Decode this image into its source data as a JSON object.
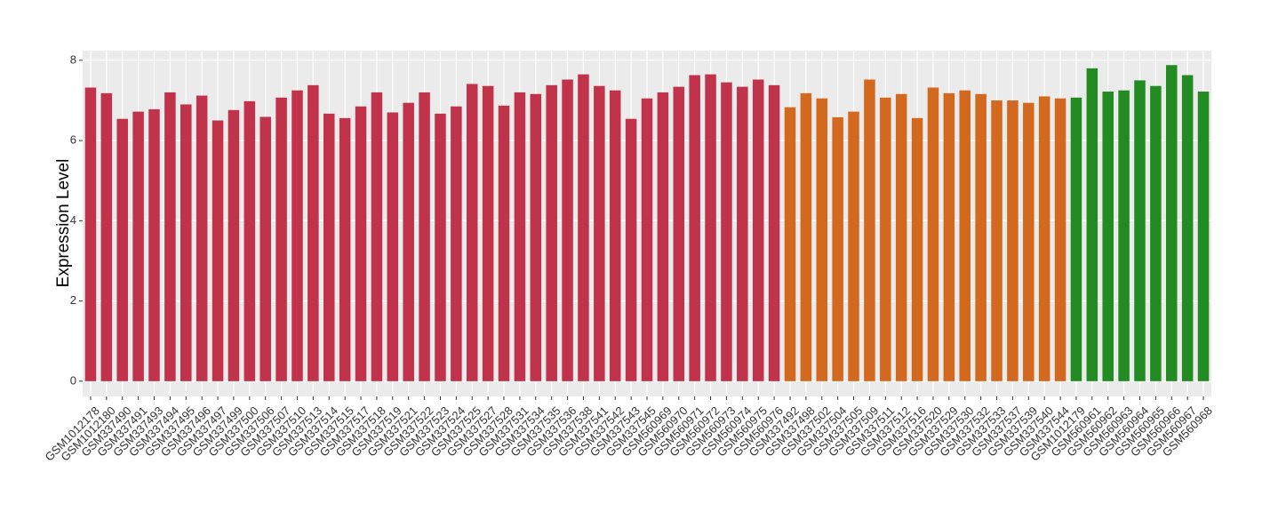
{
  "chart_data": {
    "type": "bar",
    "y_label": "Expression Level",
    "categories": [
      "GSM1012178",
      "GSM1012180",
      "GSM337490",
      "GSM337491",
      "GSM337493",
      "GSM337494",
      "GSM337495",
      "GSM337496",
      "GSM337497",
      "GSM337499",
      "GSM337500",
      "GSM337506",
      "GSM337507",
      "GSM337510",
      "GSM337513",
      "GSM337514",
      "GSM337515",
      "GSM337517",
      "GSM337518",
      "GSM337519",
      "GSM337521",
      "GSM337522",
      "GSM337523",
      "GSM337524",
      "GSM337525",
      "GSM337527",
      "GSM337528",
      "GSM337531",
      "GSM337534",
      "GSM337535",
      "GSM337536",
      "GSM337538",
      "GSM337541",
      "GSM337542",
      "GSM337543",
      "GSM337545",
      "GSM560969",
      "GSM560970",
      "GSM560971",
      "GSM560972",
      "GSM560973",
      "GSM560974",
      "GSM560975",
      "GSM560976",
      "GSM337492",
      "GSM337498",
      "GSM337502",
      "GSM337504",
      "GSM337505",
      "GSM337509",
      "GSM337511",
      "GSM337512",
      "GSM337516",
      "GSM337520",
      "GSM337529",
      "GSM337530",
      "GSM337532",
      "GSM337533",
      "GSM337537",
      "GSM337539",
      "GSM337540",
      "GSM337544",
      "GSM1012179",
      "GSM560961",
      "GSM560962",
      "GSM560963",
      "GSM560964",
      "GSM560965",
      "GSM560966",
      "GSM560967",
      "GSM560968"
    ],
    "values": [
      7.32,
      7.18,
      6.54,
      6.72,
      6.78,
      7.2,
      6.9,
      7.12,
      6.5,
      6.76,
      6.98,
      6.59,
      7.07,
      7.25,
      7.38,
      6.67,
      6.56,
      6.85,
      7.2,
      6.7,
      6.94,
      7.2,
      6.67,
      6.85,
      7.41,
      7.36,
      6.87,
      7.2,
      7.16,
      7.38,
      7.52,
      7.65,
      7.36,
      7.25,
      6.54,
      7.05,
      7.2,
      7.34,
      7.63,
      7.65,
      7.45,
      7.34,
      7.52,
      7.38,
      6.83,
      7.18,
      7.05,
      6.58,
      6.72,
      7.52,
      7.07,
      7.16,
      6.56,
      7.32,
      7.18,
      7.25,
      7.16,
      7.0,
      7.0,
      6.94,
      7.1,
      7.05,
      7.07,
      7.8,
      7.22,
      7.25,
      7.5,
      7.36,
      7.88,
      7.63,
      7.22
    ],
    "colors": [
      "#c0334a",
      "#c0334a",
      "#c0334a",
      "#c0334a",
      "#c0334a",
      "#c0334a",
      "#c0334a",
      "#c0334a",
      "#c0334a",
      "#c0334a",
      "#c0334a",
      "#c0334a",
      "#c0334a",
      "#c0334a",
      "#c0334a",
      "#c0334a",
      "#c0334a",
      "#c0334a",
      "#c0334a",
      "#c0334a",
      "#c0334a",
      "#c0334a",
      "#c0334a",
      "#c0334a",
      "#c0334a",
      "#c0334a",
      "#c0334a",
      "#c0334a",
      "#c0334a",
      "#c0334a",
      "#c0334a",
      "#c0334a",
      "#c0334a",
      "#c0334a",
      "#c0334a",
      "#c0334a",
      "#c0334a",
      "#c0334a",
      "#c0334a",
      "#c0334a",
      "#c0334a",
      "#c0334a",
      "#c0334a",
      "#c0334a",
      "#d2691e",
      "#d2691e",
      "#d2691e",
      "#d2691e",
      "#d2691e",
      "#d2691e",
      "#d2691e",
      "#d2691e",
      "#d2691e",
      "#d2691e",
      "#d2691e",
      "#d2691e",
      "#d2691e",
      "#d2691e",
      "#d2691e",
      "#d2691e",
      "#d2691e",
      "#d2691e",
      "#228b22",
      "#228b22",
      "#228b22",
      "#228b22",
      "#228b22",
      "#228b22",
      "#228b22",
      "#228b22",
      "#228b22"
    ],
    "ylim": [
      -0.38,
      8.24
    ],
    "yticks": [
      0,
      2,
      4,
      6,
      8
    ],
    "grid": true
  }
}
